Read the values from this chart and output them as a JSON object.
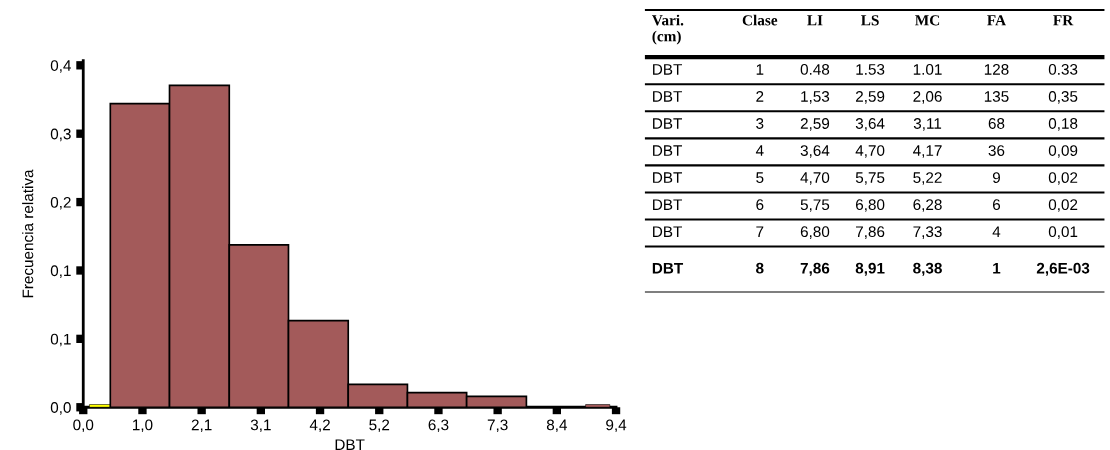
{
  "chart_data": {
    "type": "histogram",
    "xlabel": "DBT",
    "ylabel": "Frecuencia relativa",
    "bins": [
      0.11,
      0.48,
      1.53,
      2.59,
      3.64,
      4.7,
      5.75,
      6.8,
      7.86,
      8.91,
      9.34
    ],
    "values": [
      0.003,
      0.333,
      0.353,
      0.178,
      0.095,
      0.025,
      0.016,
      0.012,
      null,
      0.003
    ],
    "colors": [
      "#ffff00",
      "#a35a5a",
      "#a35a5a",
      "#a35a5a",
      "#a35a5a",
      "#a35a5a",
      "#a35a5a",
      "#a35a5a",
      "#a35a5a",
      "#a35a5a"
    ],
    "xlim": [
      0,
      9.45
    ],
    "xticks": [
      {
        "value": 0,
        "label": "0,0"
      },
      {
        "value": 1.05,
        "label": "1,0"
      },
      {
        "value": 2.1,
        "label": "2,1"
      },
      {
        "value": 3.15,
        "label": "3,1"
      },
      {
        "value": 4.2,
        "label": "4,2"
      },
      {
        "value": 5.25,
        "label": "5,2"
      },
      {
        "value": 6.3,
        "label": "6,3"
      },
      {
        "value": 7.35,
        "label": "7,3"
      },
      {
        "value": 8.4,
        "label": "8,4"
      },
      {
        "value": 9.45,
        "label": "9,4"
      }
    ],
    "ylim": [
      0,
      0.38
    ],
    "yticks": [
      {
        "value": 0,
        "label": "0,0"
      },
      {
        "value": 0.075,
        "label": "0,1"
      },
      {
        "value": 0.15,
        "label": "0,1"
      },
      {
        "value": 0.225,
        "label": "0,2"
      },
      {
        "value": 0.3,
        "label": "0,3"
      },
      {
        "value": 0.375,
        "label": "0,4"
      }
    ],
    "grid": false,
    "legend": false,
    "annotations": [
      "Vari. (cm)",
      "Clase",
      "LI",
      "LS",
      "MC",
      "FA",
      "FR",
      "DBT",
      "1",
      "0.48",
      "1.53",
      "1.01",
      "128",
      "0.33",
      "DBT",
      "2",
      "1,53",
      "2,59",
      "2,06",
      "135",
      "0,35",
      "DBT",
      "3",
      "2,59",
      "3,64",
      "3,11",
      "68",
      "0,18",
      "DBT",
      "4",
      "3,64",
      "4,70",
      "4,17",
      "36",
      "0,09",
      "DBT",
      "5",
      "4,70",
      "5,75",
      "5,22",
      "9",
      "0,02",
      "DBT",
      "6",
      "5,75",
      "6,80",
      "6,28",
      "6",
      "0,02",
      "DBT",
      "7",
      "6,80",
      "7,86",
      "7,33",
      "4",
      "0,01",
      "DBT",
      "8",
      "7,86",
      "8,91",
      "8,38",
      "1",
      "2,6E-03"
    ]
  }
}
